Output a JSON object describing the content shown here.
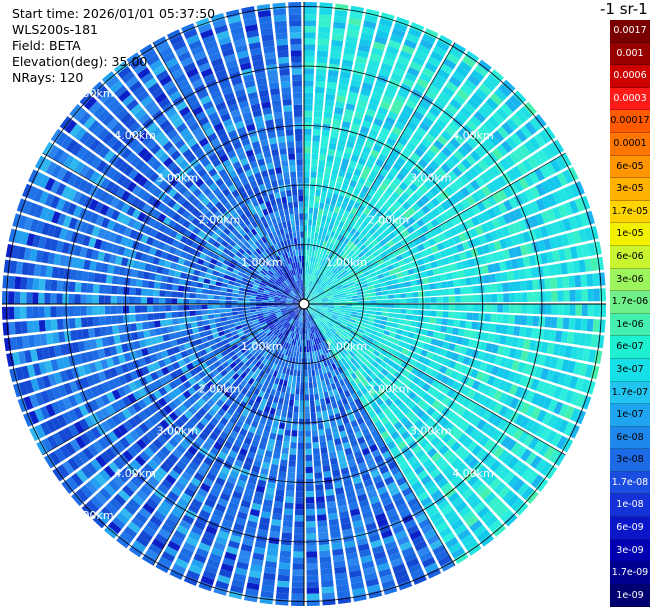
{
  "header": {
    "start_time": "Start time: 2026/01/01 05:37:50",
    "instrument": "WLS200s-181",
    "field": "Field: BETA",
    "elevation": "Elevation(deg): 35.00",
    "nrays": "NRays: 120"
  },
  "colorbar": {
    "title": "-1 sr-1",
    "levels": [
      {
        "label": "0.0017",
        "color": "#7a0000"
      },
      {
        "label": "0.001",
        "color": "#990000"
      },
      {
        "label": "0.0006",
        "color": "#cc0000"
      },
      {
        "label": "0.0003",
        "color": "#ff1a1a"
      },
      {
        "label": "0.00017",
        "color": "#ff5a00"
      },
      {
        "label": "0.0001",
        "color": "#ff7700"
      },
      {
        "label": "6e-05",
        "color": "#ff9600"
      },
      {
        "label": "3e-05",
        "color": "#ffb200"
      },
      {
        "label": "1.7e-05",
        "color": "#ffd400"
      },
      {
        "label": "1e-05",
        "color": "#f2f200"
      },
      {
        "label": "6e-06",
        "color": "#c8f530"
      },
      {
        "label": "3e-06",
        "color": "#9cf55c"
      },
      {
        "label": "1.7e-06",
        "color": "#70f08a"
      },
      {
        "label": "1e-06",
        "color": "#44f0b0"
      },
      {
        "label": "6e-07",
        "color": "#1ef0d2"
      },
      {
        "label": "3e-07",
        "color": "#15e0e8"
      },
      {
        "label": "1.7e-07",
        "color": "#22c4f0"
      },
      {
        "label": "1e-07",
        "color": "#1fa5f0"
      },
      {
        "label": "6e-08",
        "color": "#1e88ec"
      },
      {
        "label": "3e-08",
        "color": "#1d6ae6"
      },
      {
        "label": "1.7e-08",
        "color": "#1b4ee0"
      },
      {
        "label": "1e-08",
        "color": "#1432d8"
      },
      {
        "label": "6e-09",
        "color": "#0a16c8"
      },
      {
        "label": "3e-09",
        "color": "#0000b0"
      },
      {
        "label": "1.7e-09",
        "color": "#000090"
      },
      {
        "label": "1e-09",
        "color": "#000070"
      }
    ]
  },
  "range_labels": [
    {
      "label": "1.00km",
      "quadrant": "upper-left"
    },
    {
      "label": "2.00km",
      "quadrant": "upper-left"
    },
    {
      "label": "3.00km",
      "quadrant": "upper-left"
    },
    {
      "label": "4.00km",
      "quadrant": "upper-left"
    },
    {
      "label": "5.00km",
      "quadrant": "upper-left"
    },
    {
      "label": "1.00km",
      "quadrant": "upper-right"
    },
    {
      "label": "2.00km",
      "quadrant": "upper-right"
    },
    {
      "label": "3.00km",
      "quadrant": "upper-right"
    },
    {
      "label": "4.00km",
      "quadrant": "upper-right"
    },
    {
      "label": "1.00km",
      "quadrant": "lower-left"
    },
    {
      "label": "2.00km",
      "quadrant": "lower-left"
    },
    {
      "label": "3.00km",
      "quadrant": "lower-left"
    },
    {
      "label": "4.00km",
      "quadrant": "lower-left"
    },
    {
      "label": "5.00km",
      "quadrant": "lower-left"
    },
    {
      "label": "1.00km",
      "quadrant": "lower-right"
    },
    {
      "label": "2.00km",
      "quadrant": "lower-right"
    },
    {
      "label": "3.00km",
      "quadrant": "lower-right"
    },
    {
      "label": "4.00km",
      "quadrant": "lower-right"
    }
  ],
  "plot": {
    "max_range_km": 5,
    "nrays": 120,
    "ring_spacing_km": 1,
    "background_color": "#1e74e8",
    "east_sector_color": "#1ad8e8"
  }
}
